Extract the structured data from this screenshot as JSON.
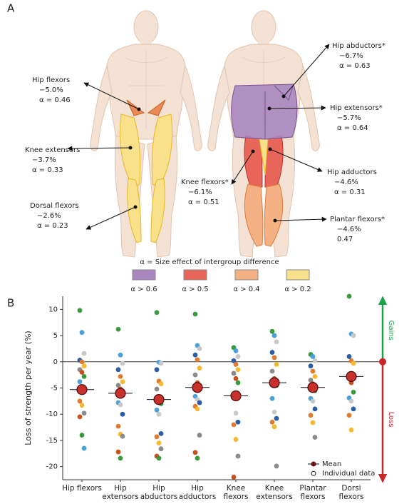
{
  "panel_a": {
    "label": "A",
    "muscles": [
      {
        "name": "Hip flexors",
        "change": "−5.0%",
        "alpha": "α = 0.46"
      },
      {
        "name": "Knee extensors",
        "change": "−3.7%",
        "alpha": "α = 0.33"
      },
      {
        "name": "Dorsal flexors",
        "change": "−2.6%",
        "alpha": "α = 0.23"
      },
      {
        "name": "Hip abductors*",
        "change": "−6.7%",
        "alpha": "α = 0.63"
      },
      {
        "name": "Hip extensors*",
        "change": "−5.7%",
        "alpha": "α = 0.64"
      },
      {
        "name": "Hip adductors",
        "change": "−4.6%",
        "alpha": "α = 0.31"
      },
      {
        "name": "Knee flexors*",
        "change": "−6.1%",
        "alpha": "α = 0.51"
      },
      {
        "name": "Plantar flexors*",
        "change": "−4.6%",
        "alpha": "0.47"
      }
    ],
    "legend": {
      "title": "α = Size effect of intergroup difference",
      "items": [
        {
          "label": "α > 0.6",
          "color": "#a886bf"
        },
        {
          "label": "α > 0.5",
          "color": "#e8655a"
        },
        {
          "label": "α > 0.4",
          "color": "#f4b183"
        },
        {
          "label": "α > 0.2",
          "color": "#f9e08b"
        }
      ]
    }
  },
  "chart_data": {
    "type": "dot",
    "panel_label": "B",
    "y_label": "Loss of strength per year (%)",
    "categories": [
      "Hip flexors",
      "Hip extensors",
      "Hip abductors",
      "Hip adductors",
      "Knee flexors",
      "Knee extensors",
      "Plantar flexors",
      "Dorsi flexors"
    ],
    "means": [
      -5.3,
      -6.0,
      -7.2,
      -4.9,
      -6.5,
      -4.0,
      -4.9,
      -2.8
    ],
    "points": [
      [
        9.8,
        5.6,
        1.6,
        0.3,
        0,
        -0.8,
        -1.5,
        -2,
        -2.8,
        -3.8,
        -5,
        -5.5,
        -7.5,
        -8.3,
        -9.8,
        -10.5,
        -14,
        -16.5
      ],
      [
        6.2,
        1.3,
        -0.3,
        -1.5,
        -2.8,
        -3.8,
        -4.5,
        -5.2,
        -6,
        -7.8,
        -8.2,
        -10,
        -12.3,
        -13.8,
        -14.2,
        -17.2,
        -18.4
      ],
      [
        9.4,
        -0.1,
        -0.3,
        -1.5,
        -3.7,
        -4.2,
        -5.2,
        -7,
        -8,
        -9.2,
        -10,
        -13.7,
        -14.3,
        -15.5,
        -16.6,
        -18,
        -18.4
      ],
      [
        9.1,
        3.1,
        2.5,
        1.3,
        0.4,
        -1.2,
        -2.5,
        -4,
        -5.2,
        -6.6,
        -7.2,
        -7.8,
        -8.5,
        -9,
        -14,
        -17.3,
        -18.4
      ],
      [
        2.7,
        2.1,
        1,
        0.2,
        -0.5,
        -1.5,
        -2.2,
        -3.2,
        -4,
        -6.5,
        -9.8,
        -11.5,
        -12,
        -14.8,
        -18,
        -22
      ],
      [
        5.8,
        5,
        3.8,
        1.8,
        0.8,
        -0.5,
        -1.8,
        -3.2,
        -4.5,
        -7,
        -9.6,
        -10.8,
        -11.5,
        -12.4,
        -19.9
      ],
      [
        1.4,
        1,
        0.2,
        -0.8,
        -1.8,
        -2.8,
        -3.5,
        -4.2,
        -5.5,
        -7,
        -7.5,
        -9,
        -10.2,
        -11.6,
        -14.4
      ],
      [
        12.5,
        5.3,
        5,
        1,
        0.2,
        -0.3,
        -2.8,
        -4,
        -5.8,
        -6.9,
        -7.5,
        -9,
        -10.2,
        -13
      ]
    ],
    "point_palette": [
      "#3a9a3e",
      "#4aa0d8",
      "#c8c8c8",
      "#2b5ca8",
      "#e07a2e",
      "#f5b82e",
      "#8a8a8a",
      "#c8501c"
    ],
    "mean_color": "#c8302c",
    "ylim": [
      -22.5,
      12.5
    ],
    "yticks": [
      10,
      5,
      0,
      -5,
      -10,
      -15,
      -20
    ],
    "legend_labels": [
      "Mean",
      "Individual data"
    ],
    "gains_label": "Gains",
    "loss_label": "Loss",
    "gains_color": "#1aa34a",
    "loss_color": "#c8282c"
  }
}
